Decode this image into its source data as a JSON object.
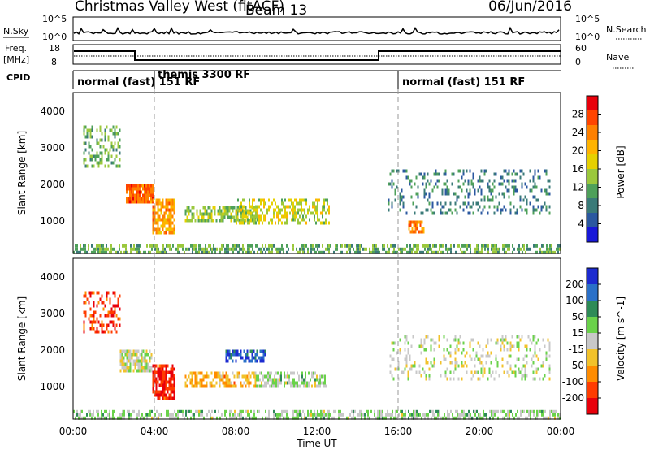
{
  "header": {
    "title": "Christmas Valley West (fitACF)",
    "beam": "Beam 13",
    "date": "06/Jun/2016"
  },
  "time_axis": {
    "label": "Time UT",
    "ticks": [
      "00:00",
      "04:00",
      "08:00",
      "12:00",
      "16:00",
      "20:00",
      "00:00"
    ],
    "marker_times_hours": [
      4,
      16
    ]
  },
  "nsky_panel": {
    "left_label": "N.Sky",
    "right_label": "N.Search",
    "left_ticks": [
      "10^5",
      "10^0"
    ],
    "right_ticks": [
      "10^5",
      "10^0"
    ]
  },
  "freq_panel": {
    "left_label_line1": "Freq.",
    "left_label_line2": "[MHz]",
    "right_label": "Nave",
    "left_ticks": [
      "18",
      "8"
    ],
    "right_ticks": [
      "60",
      "0"
    ]
  },
  "cpid": {
    "label": "CPID",
    "segments": [
      {
        "text": "normal (fast) 151 RF",
        "start_hour": 0
      },
      {
        "text": "themis 3300 RF",
        "start_hour": 4
      },
      {
        "text": "normal (fast) 151 RF",
        "start_hour": 16
      }
    ]
  },
  "power_panel": {
    "ylabel": "Slant Range [km]",
    "yticks": [
      "4000",
      "3000",
      "2000",
      "1000"
    ],
    "colorbar": {
      "label": "Power [dB]",
      "ticks": [
        "28",
        "24",
        "20",
        "16",
        "12",
        "8",
        "4"
      ],
      "colors": [
        "#e8000b",
        "#ff4400",
        "#ff8000",
        "#ffb300",
        "#e6d000",
        "#9bc83c",
        "#4ea05a",
        "#3a7a78",
        "#2b58a0",
        "#1818d8"
      ]
    }
  },
  "velocity_panel": {
    "ylabel": "Slant Range [km]",
    "yticks": [
      "4000",
      "3000",
      "2000",
      "1000"
    ],
    "colorbar": {
      "label": "Velocity [m s^-1]",
      "ticks": [
        "200",
        "100",
        "50",
        "15",
        "-15",
        "-50",
        "-100",
        "-200"
      ],
      "colors": [
        "#1c2bd0",
        "#2a70c8",
        "#2e8b57",
        "#6ad24a",
        "#c8c8c8",
        "#f2c22a",
        "#ff8c00",
        "#ff3c00",
        "#e8000b"
      ]
    }
  },
  "chart_data": [
    {
      "type": "heatmap",
      "name": "Power [dB]",
      "x_range_hours": [
        0,
        24
      ],
      "y_range_km": [
        200,
        4600
      ],
      "value_range_db": [
        0,
        32
      ],
      "regions": [
        {
          "t0": 0.5,
          "t1": 2.3,
          "r0": 2600,
          "r1": 3700,
          "value": 12,
          "density": 0.35
        },
        {
          "t0": 2.6,
          "t1": 3.9,
          "r0": 1600,
          "r1": 2100,
          "value": 26,
          "density": 0.9
        },
        {
          "t0": 3.9,
          "t1": 5.0,
          "r0": 800,
          "r1": 1700,
          "value": 22,
          "density": 0.75
        },
        {
          "t0": 5.5,
          "t1": 9.0,
          "r0": 1100,
          "r1": 1500,
          "value": 14,
          "density": 0.6
        },
        {
          "t0": 8.0,
          "t1": 12.6,
          "r0": 1000,
          "r1": 1700,
          "value": 16,
          "density": 0.5
        },
        {
          "t0": 16.5,
          "t1": 17.3,
          "r0": 800,
          "r1": 1100,
          "value": 24,
          "density": 0.8
        },
        {
          "t0": 15.5,
          "t1": 23.5,
          "r0": 1300,
          "r1": 2500,
          "value": 8,
          "density": 0.25
        },
        {
          "t0": 0.0,
          "t1": 24.0,
          "r0": 200,
          "r1": 450,
          "value": 12,
          "density": 0.55
        }
      ]
    },
    {
      "type": "heatmap",
      "name": "Velocity [m s^-1]",
      "x_range_hours": [
        0,
        24
      ],
      "y_range_km": [
        200,
        4600
      ],
      "value_range_ms": [
        -250,
        250
      ],
      "regions": [
        {
          "t0": 0.5,
          "t1": 2.3,
          "r0": 2600,
          "r1": 3700,
          "value": -180,
          "density": 0.35
        },
        {
          "t0": 2.3,
          "t1": 3.9,
          "r0": 1500,
          "r1": 2100,
          "value": 0,
          "density": 0.75
        },
        {
          "t0": 3.9,
          "t1": 5.0,
          "r0": 800,
          "r1": 1700,
          "value": -200,
          "density": 0.8
        },
        {
          "t0": 5.5,
          "t1": 9.0,
          "r0": 1100,
          "r1": 1500,
          "value": -80,
          "density": 0.6
        },
        {
          "t0": 7.5,
          "t1": 9.5,
          "r0": 1800,
          "r1": 2100,
          "value": 180,
          "density": 0.6
        },
        {
          "t0": 9.0,
          "t1": 12.5,
          "r0": 1100,
          "r1": 1500,
          "value": 30,
          "density": 0.6
        },
        {
          "t0": 15.5,
          "t1": 23.5,
          "r0": 1300,
          "r1": 2500,
          "value": 0,
          "density": 0.25
        },
        {
          "t0": 0.0,
          "t1": 24.0,
          "r0": 200,
          "r1": 450,
          "value": 30,
          "density": 0.55
        }
      ]
    }
  ]
}
